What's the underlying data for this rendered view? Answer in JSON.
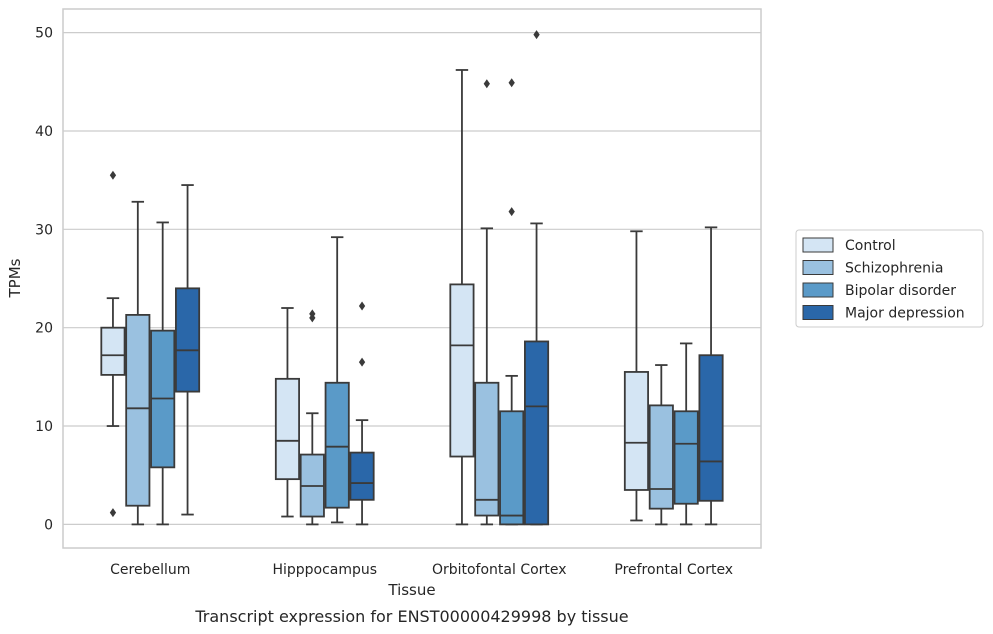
{
  "caption": "Transcript expression for ENST00000429998 by tissue",
  "chart_data": {
    "type": "box",
    "title": "",
    "xlabel": "Tissue",
    "ylabel": "TPMs",
    "ylim": [
      -2.4,
      52.4
    ],
    "yticks": [
      0,
      10,
      20,
      30,
      40,
      50
    ],
    "grid": "horizontal",
    "legend_position": "right",
    "categories": [
      "Cerebellum",
      "Hipppocampus",
      "Orbitofontal Cortex",
      "Prefrontal Cortex"
    ],
    "series": [
      {
        "name": "Control",
        "color": "#d4e5f4",
        "boxes": [
          {
            "whislo": 10.0,
            "q1": 15.2,
            "med": 17.2,
            "q3": 20.0,
            "whishi": 23.0,
            "fliers": [
              35.5,
              1.2
            ]
          },
          {
            "whislo": 0.8,
            "q1": 4.6,
            "med": 8.5,
            "q3": 14.8,
            "whishi": 22.0,
            "fliers": []
          },
          {
            "whislo": 0.0,
            "q1": 6.9,
            "med": 18.2,
            "q3": 24.4,
            "whishi": 46.2,
            "fliers": []
          },
          {
            "whislo": 0.4,
            "q1": 3.5,
            "med": 8.3,
            "q3": 15.5,
            "whishi": 29.8,
            "fliers": []
          }
        ]
      },
      {
        "name": "Schizophrenia",
        "color": "#9ac1e0",
        "boxes": [
          {
            "whislo": 0.0,
            "q1": 1.9,
            "med": 11.8,
            "q3": 21.3,
            "whishi": 32.8,
            "fliers": []
          },
          {
            "whislo": 0.0,
            "q1": 0.8,
            "med": 3.9,
            "q3": 7.1,
            "whishi": 11.3,
            "fliers": [
              21.0,
              21.4
            ]
          },
          {
            "whislo": 0.0,
            "q1": 0.9,
            "med": 2.5,
            "q3": 14.4,
            "whishi": 30.1,
            "fliers": [
              44.8
            ]
          },
          {
            "whislo": 0.0,
            "q1": 1.6,
            "med": 3.6,
            "q3": 12.1,
            "whishi": 16.2,
            "fliers": []
          }
        ]
      },
      {
        "name": "Bipolar disorder",
        "color": "#5a9ac8",
        "boxes": [
          {
            "whislo": 0.0,
            "q1": 5.8,
            "med": 12.8,
            "q3": 19.7,
            "whishi": 30.7,
            "fliers": []
          },
          {
            "whislo": 0.2,
            "q1": 1.7,
            "med": 7.9,
            "q3": 14.4,
            "whishi": 29.2,
            "fliers": []
          },
          {
            "whislo": 0.0,
            "q1": 0.0,
            "med": 0.9,
            "q3": 11.5,
            "whishi": 15.1,
            "fliers": [
              44.9,
              31.8
            ]
          },
          {
            "whislo": 0.0,
            "q1": 2.1,
            "med": 8.2,
            "q3": 11.5,
            "whishi": 18.4,
            "fliers": []
          }
        ]
      },
      {
        "name": "Major depression",
        "color": "#2a67a9",
        "boxes": [
          {
            "whislo": 1.0,
            "q1": 13.5,
            "med": 17.7,
            "q3": 24.0,
            "whishi": 34.5,
            "fliers": []
          },
          {
            "whislo": 0.0,
            "q1": 2.5,
            "med": 4.2,
            "q3": 7.3,
            "whishi": 10.6,
            "fliers": [
              22.2,
              16.5
            ]
          },
          {
            "whislo": 0.0,
            "q1": 0.0,
            "med": 12.0,
            "q3": 18.6,
            "whishi": 30.6,
            "fliers": [
              49.8
            ]
          },
          {
            "whislo": 0.0,
            "q1": 2.4,
            "med": 6.4,
            "q3": 17.2,
            "whishi": 30.2,
            "fliers": []
          }
        ]
      }
    ]
  }
}
